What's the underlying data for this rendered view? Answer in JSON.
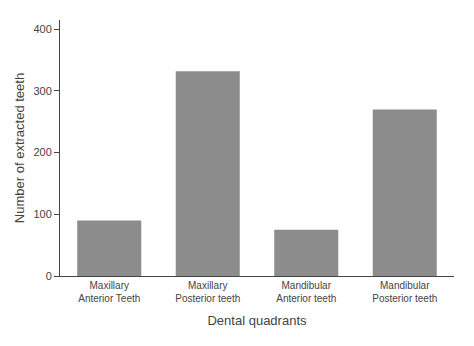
{
  "chart_data": {
    "type": "bar",
    "categories": [
      "Maxillary\nAnterior Teeth",
      "Maxillary\nPosterior teeth",
      "Mandibular\nAnterior teeth",
      "Mandibular\nPosterior teeth"
    ],
    "values": [
      90,
      332,
      75,
      270
    ],
    "color": "#8c8c8c",
    "xlabel": "Dental quadrants",
    "ylabel": "Number of extracted teeth",
    "ylim": [
      0,
      415
    ],
    "yticks": [
      0,
      100,
      200,
      300,
      400
    ],
    "grid": false
  }
}
